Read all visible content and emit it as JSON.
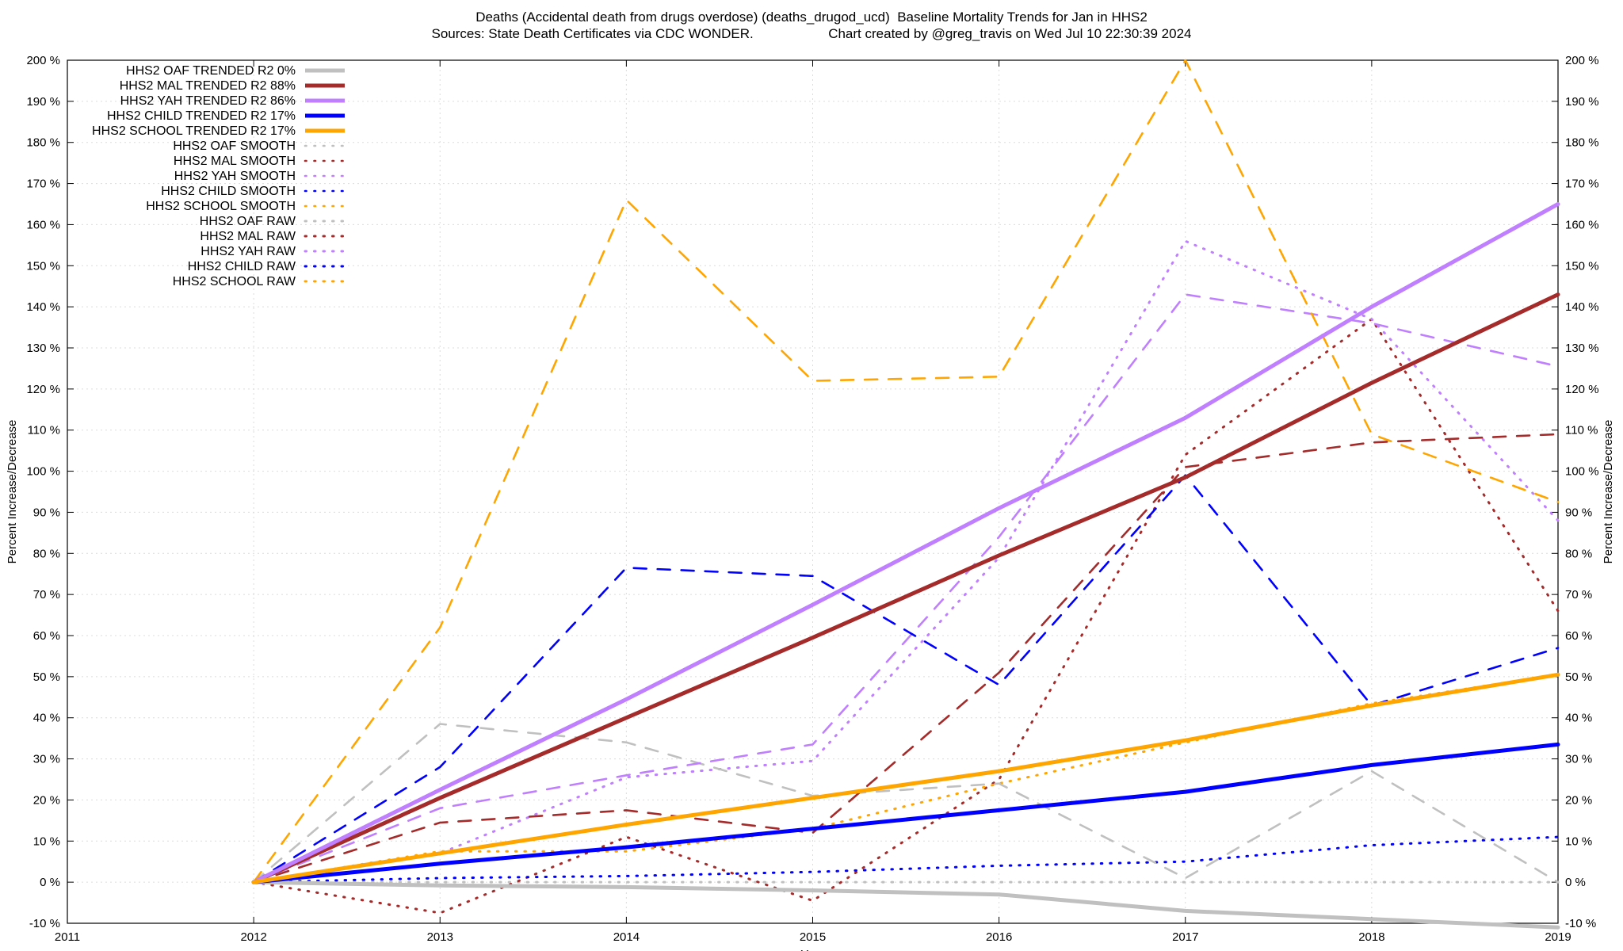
{
  "title_line1": "Deaths (Accidental death from drugs overdose) (deaths_drugod_ucd)  Baseline Mortality Trends for Jan in HHS2",
  "title_line2_left": "Sources: State Death Certificates via CDC WONDER.",
  "title_line2_right": "Chart created by @greg_travis on Wed Jul 10 22:30:39 2024",
  "chart_data": {
    "type": "line",
    "xlabel": "Year",
    "ylabel": "Percent Increase/Decrease",
    "y2label": "Percent Increase/Decrease",
    "xlim": [
      2011,
      2019
    ],
    "ylim": [
      -10,
      200
    ],
    "x_ticks": [
      "2011",
      "2012",
      "2013",
      "2014",
      "2015",
      "2016",
      "2017",
      "2018",
      "2019"
    ],
    "y_ticks": [
      "-10 %",
      "0 %",
      "10 %",
      "20 %",
      "30 %",
      "40 %",
      "50 %",
      "60 %",
      "70 %",
      "80 %",
      "90 %",
      "100 %",
      "110 %",
      "120 %",
      "130 %",
      "140 %",
      "150 %",
      "160 %",
      "170 %",
      "180 %",
      "190 %",
      "200 %"
    ],
    "grid": true,
    "legend_position": "top-left",
    "x": [
      2012,
      2013,
      2014,
      2015,
      2016,
      2017,
      2018,
      2019
    ],
    "series": [
      {
        "name": "HHS2 OAF TRENDED R2",
        "r2": "0%",
        "style": "solid",
        "color": "#c0c0c0",
        "values": [
          0,
          -0.8,
          -1.2,
          -2,
          -3,
          -7,
          -9,
          -11
        ]
      },
      {
        "name": "HHS2 MAL TRENDED R2",
        "r2": "88%",
        "style": "solid",
        "color": "#a52a2a",
        "values": [
          0,
          20.5,
          40,
          59.5,
          79.5,
          98.5,
          121.5,
          143
        ]
      },
      {
        "name": "HHS2 YAH TRENDED R2",
        "r2": "86%",
        "style": "solid",
        "color": "#bf7fff",
        "values": [
          0,
          22.5,
          44.5,
          67.5,
          91,
          113,
          140,
          165
        ]
      },
      {
        "name": "HHS2 CHILD TRENDED R2",
        "r2": "17%",
        "style": "solid",
        "color": "#0000ff",
        "values": [
          0,
          4.5,
          8.5,
          13,
          17.5,
          22,
          28.5,
          33.5
        ]
      },
      {
        "name": "HHS2 SCHOOL TRENDED R2",
        "r2": "17%",
        "style": "solid",
        "color": "#ffa500",
        "values": [
          0,
          7,
          14,
          20.5,
          27,
          34.5,
          43,
          50.5
        ]
      },
      {
        "name": "HHS2 OAF SMOOTH",
        "r2": "",
        "style": "dashed",
        "color": "#c0c0c0",
        "values": [
          0,
          38.5,
          34,
          21,
          24,
          1,
          27,
          0
        ]
      },
      {
        "name": "HHS2 MAL SMOOTH",
        "r2": "",
        "style": "dashed",
        "color": "#a52a2a",
        "values": [
          0,
          14.5,
          17.5,
          12,
          51,
          101,
          107,
          109
        ]
      },
      {
        "name": "HHS2 YAH SMOOTH",
        "r2": "",
        "style": "dashed",
        "color": "#bf7fff",
        "values": [
          0,
          18,
          26,
          33.5,
          84,
          143,
          136,
          125.5
        ]
      },
      {
        "name": "HHS2 CHILD SMOOTH",
        "r2": "",
        "style": "dashed",
        "color": "#0000ff",
        "values": [
          0,
          28,
          76.5,
          74.5,
          48,
          99,
          43,
          57
        ]
      },
      {
        "name": "HHS2 SCHOOL SMOOTH",
        "r2": "",
        "style": "dashed",
        "color": "#ffa500",
        "values": [
          0,
          62,
          166,
          122,
          123,
          200,
          109,
          92.5
        ]
      },
      {
        "name": "HHS2 OAF RAW",
        "r2": "",
        "style": "dotted",
        "color": "#c0c0c0",
        "values": [
          0,
          0,
          0,
          0,
          0,
          0,
          0,
          0
        ]
      },
      {
        "name": "HHS2 MAL RAW",
        "r2": "",
        "style": "dotted",
        "color": "#a52a2a",
        "values": [
          0,
          -7.5,
          11,
          -4.5,
          25,
          104,
          137,
          66
        ]
      },
      {
        "name": "HHS2 YAH RAW",
        "r2": "",
        "style": "dotted",
        "color": "#bf7fff",
        "values": [
          0,
          7,
          25.5,
          29.5,
          79,
          156,
          137,
          88
        ]
      },
      {
        "name": "HHS2 CHILD RAW",
        "r2": "",
        "style": "dotted",
        "color": "#0000ff",
        "values": [
          0,
          1,
          1.5,
          2.5,
          4,
          5,
          9,
          11
        ]
      },
      {
        "name": "HHS2 SCHOOL RAW",
        "r2": "",
        "style": "dotted",
        "color": "#ffa500",
        "values": [
          0,
          7.5,
          7.5,
          13,
          24,
          34,
          43.5,
          50.5
        ]
      }
    ]
  }
}
